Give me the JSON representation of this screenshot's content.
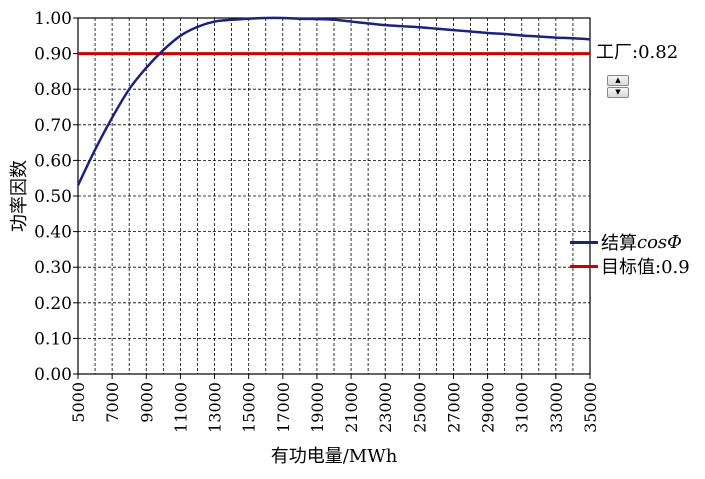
{
  "chart_data": {
    "type": "line",
    "xlabel": "有功电量/MWh",
    "ylabel": "功率因数",
    "xlim": [
      5000,
      35000
    ],
    "ylim": [
      0.0,
      1.0
    ],
    "x_ticks": [
      "5000",
      "7000",
      "9000",
      "11000",
      "13000",
      "15000",
      "17000",
      "19000",
      "21000",
      "23000",
      "25000",
      "27000",
      "29000",
      "31000",
      "33000",
      "35000"
    ],
    "y_ticks": [
      "0.00",
      "0.10",
      "0.20",
      "0.30",
      "0.40",
      "0.50",
      "0.60",
      "0.70",
      "0.80",
      "0.90",
      "1.00"
    ],
    "grid": true,
    "series": [
      {
        "name": "结算cosΦ",
        "color": "#1a237e",
        "x": [
          5000,
          6000,
          7000,
          8000,
          9000,
          10000,
          11000,
          12000,
          13000,
          14000,
          15000,
          16000,
          17000,
          18000,
          19000,
          20000,
          21000,
          22000,
          23000,
          24000,
          25000,
          26000,
          27000,
          28000,
          29000,
          30000,
          31000,
          32000,
          33000,
          34000,
          35000
        ],
        "y": [
          0.53,
          0.63,
          0.72,
          0.8,
          0.86,
          0.91,
          0.95,
          0.975,
          0.99,
          0.995,
          0.998,
          1.0,
          1.0,
          0.998,
          0.997,
          0.995,
          0.99,
          0.985,
          0.98,
          0.977,
          0.974,
          0.97,
          0.966,
          0.962,
          0.958,
          0.955,
          0.951,
          0.948,
          0.945,
          0.943,
          0.94
        ]
      },
      {
        "name": "目标值:0.9",
        "color": "#cc0000",
        "x": [
          5000,
          35000
        ],
        "y": [
          0.9,
          0.9
        ]
      }
    ],
    "legend_placement": "right"
  },
  "side": {
    "factory_label": "工厂:0.82",
    "spin_up": "▲",
    "spin_down": "▼"
  },
  "legend": {
    "items": [
      {
        "label_prefix": "结算",
        "label_italic_suffix": "cosΦ",
        "color": "#1a237e"
      },
      {
        "label": "目标值:0.9",
        "color": "#cc0000"
      }
    ]
  }
}
